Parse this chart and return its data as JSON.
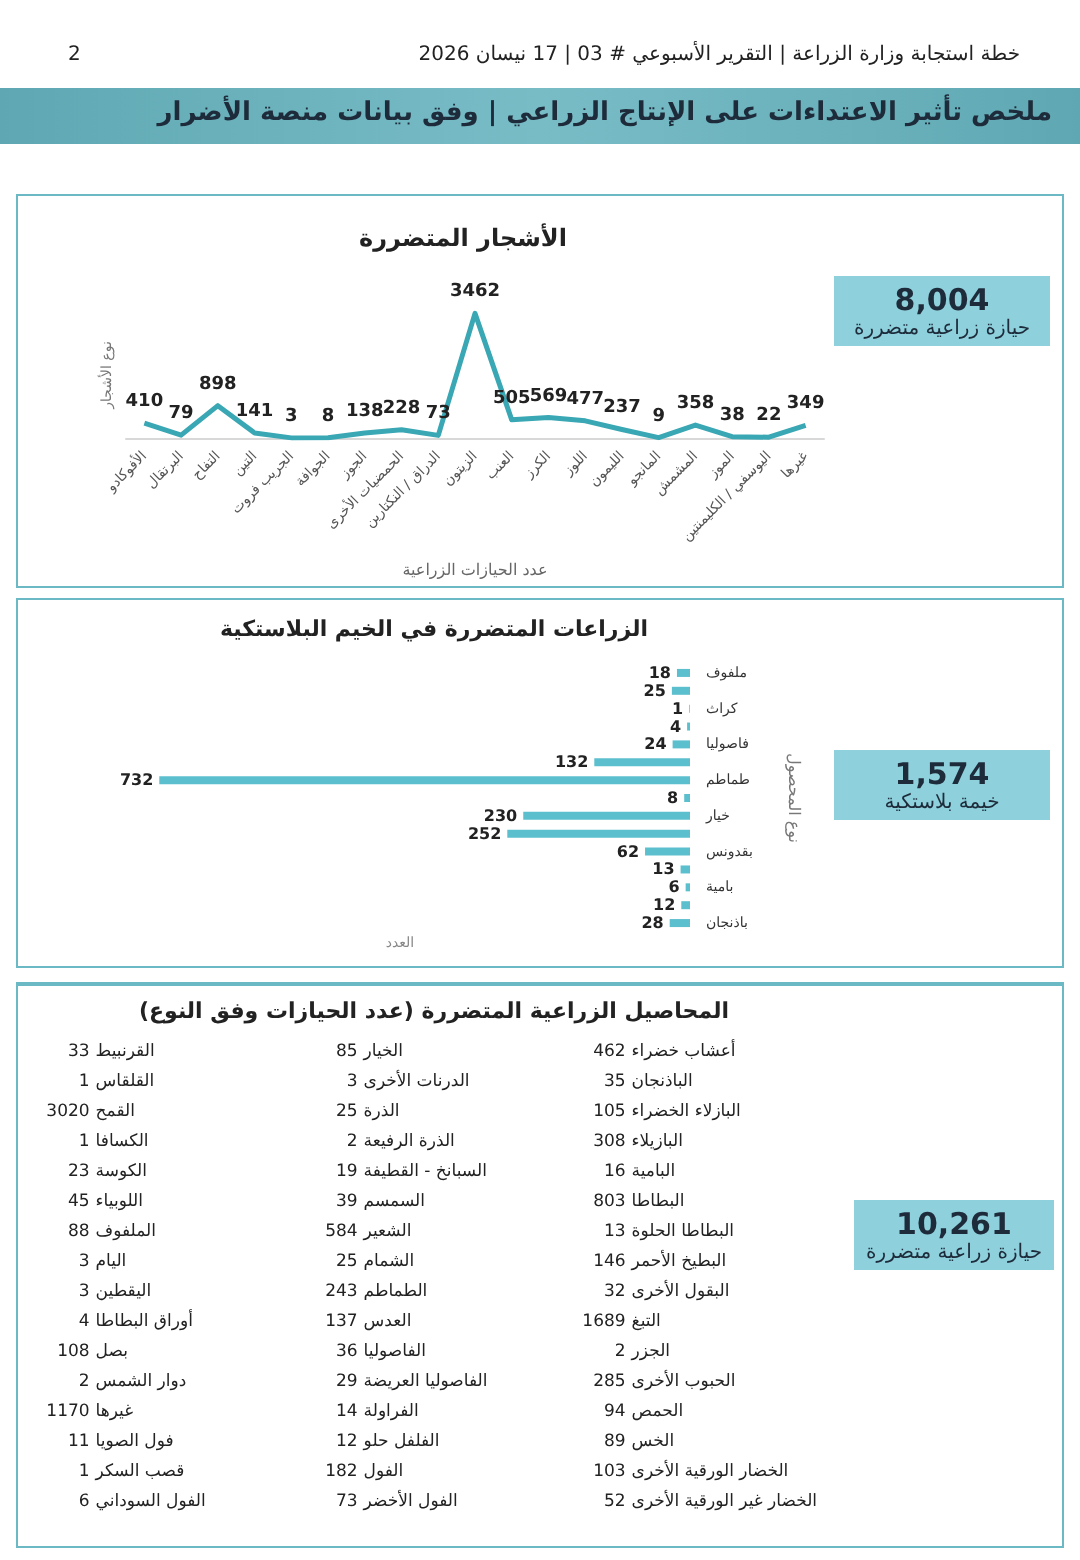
{
  "chart_data": [
    {
      "type": "line",
      "title": "الأشجار المتضررة",
      "xlabel": "عدد الحيازات الزراعية",
      "ylabel": "نوع الأشجار",
      "categories": [
        "الأفوكادو",
        "البرتقال",
        "التفاح",
        "التين",
        "الجريب فروت",
        "الجوافة",
        "الجوز",
        "الحمضيات الأخرى",
        "الدراق / النكتارين",
        "الزيتون",
        "العنب",
        "الكرز",
        "اللوز",
        "الليمون",
        "المانجو",
        "المشمش",
        "الموز",
        "اليوسفي / الكليمنتين",
        "غيرها"
      ],
      "values": [
        410,
        79,
        898,
        141,
        3,
        8,
        138,
        228,
        73,
        3462,
        505,
        569,
        477,
        237,
        9,
        358,
        38,
        22,
        349
      ],
      "color": "#3aa7b4",
      "marker": "none",
      "data_labels": true,
      "grid": false,
      "annotations": [
        "خطة استجابة وزارة الزراعة | التقرير الأسبوعي # 03 | 17 نيسان 2026",
        "2",
        "ملخص تأثير الاعتداءات على الإنتاج الزراعي | وفق بيانات منصة الأضرار",
        "8,004",
        "حيازة زراعية متضررة"
      ]
    },
    {
      "type": "bar",
      "orientation": "horizontal",
      "title": "الزراعات المتضررة في الخيم البلاستكية",
      "xlabel": "العدد",
      "ylabel": "نوع المحصول",
      "categories": [
        "ملفوف",
        null,
        "كراث",
        null,
        "فاصوليا",
        null,
        "طماطم",
        null,
        "خيار",
        null,
        "بقدونس",
        null,
        "بامية",
        null,
        "باذنجان"
      ],
      "values": [
        18,
        25,
        1,
        4,
        24,
        132,
        732,
        8,
        230,
        252,
        62,
        13,
        6,
        12,
        28
      ],
      "color": "#5bbfce",
      "data_labels": true,
      "grid": false,
      "annotations": [
        "1,574",
        "خيمة بلاستكية"
      ]
    },
    {
      "type": "other",
      "title": "المحاصيل الزراعية المتضررة (عدد الحيازات وفق النوع)",
      "categories": [
        "أعشاب خضراء",
        "الباذنجان",
        "البازلاء الخضراء",
        "البازيلاء",
        "البامية",
        "البطاطا",
        "البطاطا الحلوة",
        "البطيخ الأحمر",
        "البقول الأخرى",
        "التبغ",
        "الجزر",
        "الحبوب الأخرى",
        "الحمص",
        "الخس",
        "الخضار الورقية الأخرى",
        "الخضار غير الورقية الأخرى",
        "الخيار",
        "الدرنات الأخرى",
        "الذرة",
        "الذرة الرفيعة",
        "السبانخ - القطيفة",
        "السمسم",
        "الشعير",
        "الشمام",
        "الطماطم",
        "العدس",
        "الفاصوليا",
        "الفاصوليا العريضة",
        "الفراولة",
        "الفلفل حلو",
        "الفول",
        "الفول الأخضر",
        "القرنبيط",
        "القلقاس",
        "القمح",
        "الكسافا",
        "الكوسة",
        "اللوبياء",
        "الملفوف",
        "اليام",
        "اليقطين",
        "أوراق البطاطا",
        "بصل",
        "دوار الشمس",
        "غيرها",
        "فول الصويا",
        "قصب السكر",
        "الفول السوداني"
      ],
      "values": [
        462,
        35,
        105,
        308,
        16,
        803,
        13,
        146,
        32,
        1689,
        2,
        285,
        94,
        89,
        103,
        52,
        85,
        3,
        25,
        2,
        19,
        39,
        584,
        25,
        243,
        137,
        36,
        29,
        14,
        12,
        182,
        73,
        33,
        1,
        3020,
        1,
        23,
        45,
        88,
        3,
        3,
        4,
        108,
        2,
        1170,
        11,
        1,
        6
      ],
      "data_labels": true,
      "annotations": [
        "10,261",
        "حيازة زراعية متضررة"
      ]
    }
  ]
}
